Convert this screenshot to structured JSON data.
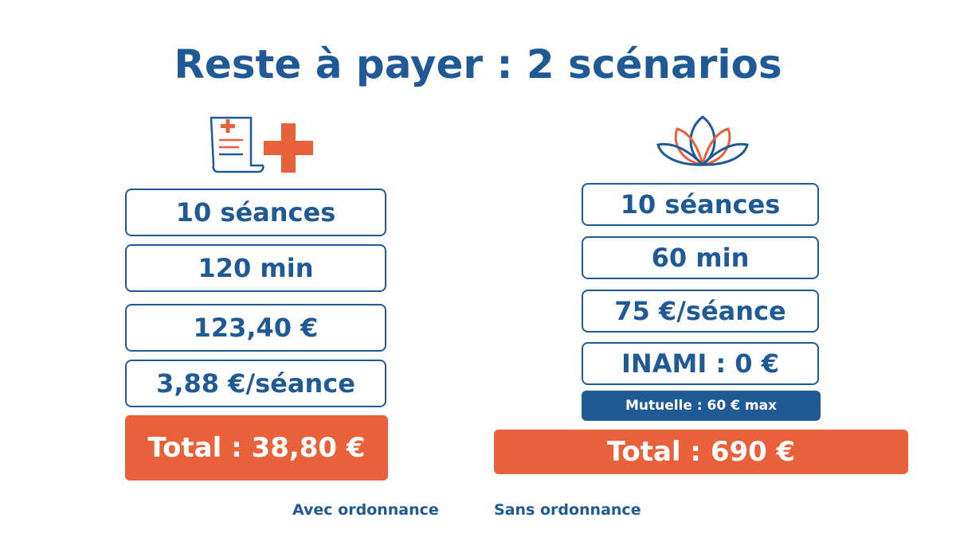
{
  "title": "Reste à payer : 2 scénarios",
  "scenarios": [
    {
      "items": [
        "10 séances",
        "120 min",
        "123,40 €",
        "3,88 €/séance"
      ],
      "total": "Total : 38,80 €",
      "caption": "Avec ordonnance"
    },
    {
      "items": [
        "10 séances",
        "60 min",
        "75 €/séance",
        "INAMI : 0 €"
      ],
      "note": "Mutuelle : 60 € max",
      "total": "Total : 690 €",
      "caption": "Sans ordonnance"
    }
  ]
}
